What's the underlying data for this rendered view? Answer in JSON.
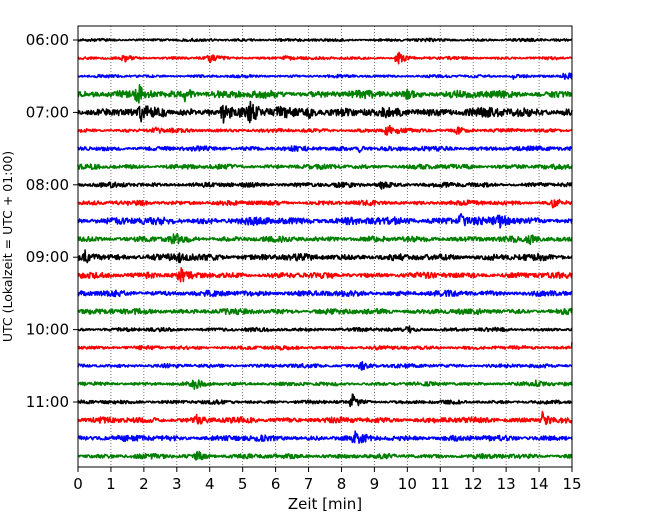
{
  "chart_data": {
    "type": "line",
    "xlabel": "Zeit  [min]",
    "ylabel": "UTC (Lokalzeit = UTC + 01:00)",
    "xlim": [
      0,
      15
    ],
    "x_ticks": [
      "0",
      "1",
      "2",
      "3",
      "4",
      "5",
      "6",
      "7",
      "8",
      "9",
      "10",
      "11",
      "12",
      "13",
      "14",
      "15"
    ],
    "y_ticks": [
      "06:00",
      "07:00",
      "08:00",
      "09:00",
      "10:00",
      "11:00"
    ],
    "y_ticks_hours": [
      6,
      7,
      8,
      9,
      10,
      11
    ],
    "trace_interval_minutes": 15,
    "grid_x": true,
    "grid_style": "dotted",
    "color_cycle": [
      "#000000",
      "#ff0000",
      "#0000ff",
      "#008000"
    ],
    "series": [
      {
        "start": "06:00",
        "color": "#000000",
        "amplitude": 0.15,
        "events": []
      },
      {
        "start": "06:15",
        "color": "#ff0000",
        "amplitude": 0.15,
        "events": [
          {
            "t": 1.4,
            "a": 0.4
          },
          {
            "t": 4.0,
            "a": 0.4
          },
          {
            "t": 6.3,
            "a": 0.4
          },
          {
            "t": 9.7,
            "a": 0.8
          }
        ]
      },
      {
        "start": "06:30",
        "color": "#0000ff",
        "amplitude": 0.15,
        "events": [
          {
            "t": 13.2,
            "a": 0.3
          },
          {
            "t": 14.8,
            "a": 0.5
          }
        ]
      },
      {
        "start": "06:45",
        "color": "#008000",
        "amplitude": 0.4,
        "events": [
          {
            "t": 1.8,
            "a": 1.3
          },
          {
            "t": 3.2,
            "a": 1.1
          },
          {
            "t": 10.0,
            "a": 0.6
          }
        ]
      },
      {
        "start": "07:00",
        "color": "#000000",
        "amplitude": 0.5,
        "events": [
          {
            "t": 1.9,
            "a": 0.7
          },
          {
            "t": 4.4,
            "a": 1.4
          },
          {
            "t": 5.2,
            "a": 1.1
          },
          {
            "t": 6.1,
            "a": 1.0
          },
          {
            "t": 7.0,
            "a": 0.6
          }
        ]
      },
      {
        "start": "07:15",
        "color": "#ff0000",
        "amplitude": 0.2,
        "events": [
          {
            "t": 2.3,
            "a": 0.4
          },
          {
            "t": 9.4,
            "a": 1.0
          },
          {
            "t": 11.5,
            "a": 0.4
          }
        ]
      },
      {
        "start": "07:30",
        "color": "#0000ff",
        "amplitude": 0.25,
        "events": [
          {
            "t": 8.5,
            "a": 0.5
          }
        ]
      },
      {
        "start": "07:45",
        "color": "#008000",
        "amplitude": 0.25,
        "events": []
      },
      {
        "start": "08:00",
        "color": "#000000",
        "amplitude": 0.25,
        "events": [
          {
            "t": 9.2,
            "a": 0.5
          }
        ]
      },
      {
        "start": "08:15",
        "color": "#ff0000",
        "amplitude": 0.25,
        "events": [
          {
            "t": 14.4,
            "a": 0.5
          }
        ]
      },
      {
        "start": "08:30",
        "color": "#0000ff",
        "amplitude": 0.4,
        "events": [
          {
            "t": 11.6,
            "a": 0.8
          },
          {
            "t": 12.8,
            "a": 0.7
          }
        ]
      },
      {
        "start": "08:45",
        "color": "#008000",
        "amplitude": 0.3,
        "events": [
          {
            "t": 2.9,
            "a": 0.6
          },
          {
            "t": 13.7,
            "a": 0.5
          }
        ]
      },
      {
        "start": "09:00",
        "color": "#000000",
        "amplitude": 0.35,
        "events": [
          {
            "t": 0.2,
            "a": 0.7
          },
          {
            "t": 3.0,
            "a": 0.6
          }
        ]
      },
      {
        "start": "09:15",
        "color": "#ff0000",
        "amplitude": 0.3,
        "events": [
          {
            "t": 2.1,
            "a": 0.6
          },
          {
            "t": 3.1,
            "a": 0.8
          }
        ]
      },
      {
        "start": "09:30",
        "color": "#0000ff",
        "amplitude": 0.3,
        "events": []
      },
      {
        "start": "09:45",
        "color": "#008000",
        "amplitude": 0.3,
        "events": []
      },
      {
        "start": "10:00",
        "color": "#000000",
        "amplitude": 0.2,
        "events": [
          {
            "t": 10.0,
            "a": 0.5
          }
        ]
      },
      {
        "start": "10:15",
        "color": "#ff0000",
        "amplitude": 0.2,
        "events": [
          {
            "t": 15.0,
            "a": 0.5
          }
        ]
      },
      {
        "start": "10:30",
        "color": "#0000ff",
        "amplitude": 0.2,
        "events": [
          {
            "t": 8.6,
            "a": 0.5
          }
        ]
      },
      {
        "start": "10:45",
        "color": "#008000",
        "amplitude": 0.2,
        "events": [
          {
            "t": 3.5,
            "a": 0.6
          },
          {
            "t": 13.9,
            "a": 0.4
          }
        ]
      },
      {
        "start": "11:00",
        "color": "#000000",
        "amplitude": 0.2,
        "events": [
          {
            "t": 8.3,
            "a": 1.0
          }
        ]
      },
      {
        "start": "11:15",
        "color": "#ff0000",
        "amplitude": 0.3,
        "events": [
          {
            "t": 14.1,
            "a": 0.9
          },
          {
            "t": 3.6,
            "a": 0.4
          }
        ]
      },
      {
        "start": "11:30",
        "color": "#0000ff",
        "amplitude": 0.3,
        "events": [
          {
            "t": 8.4,
            "a": 0.6
          }
        ]
      },
      {
        "start": "11:45",
        "color": "#008000",
        "amplitude": 0.25,
        "events": [
          {
            "t": 3.6,
            "a": 0.8
          }
        ]
      }
    ]
  }
}
